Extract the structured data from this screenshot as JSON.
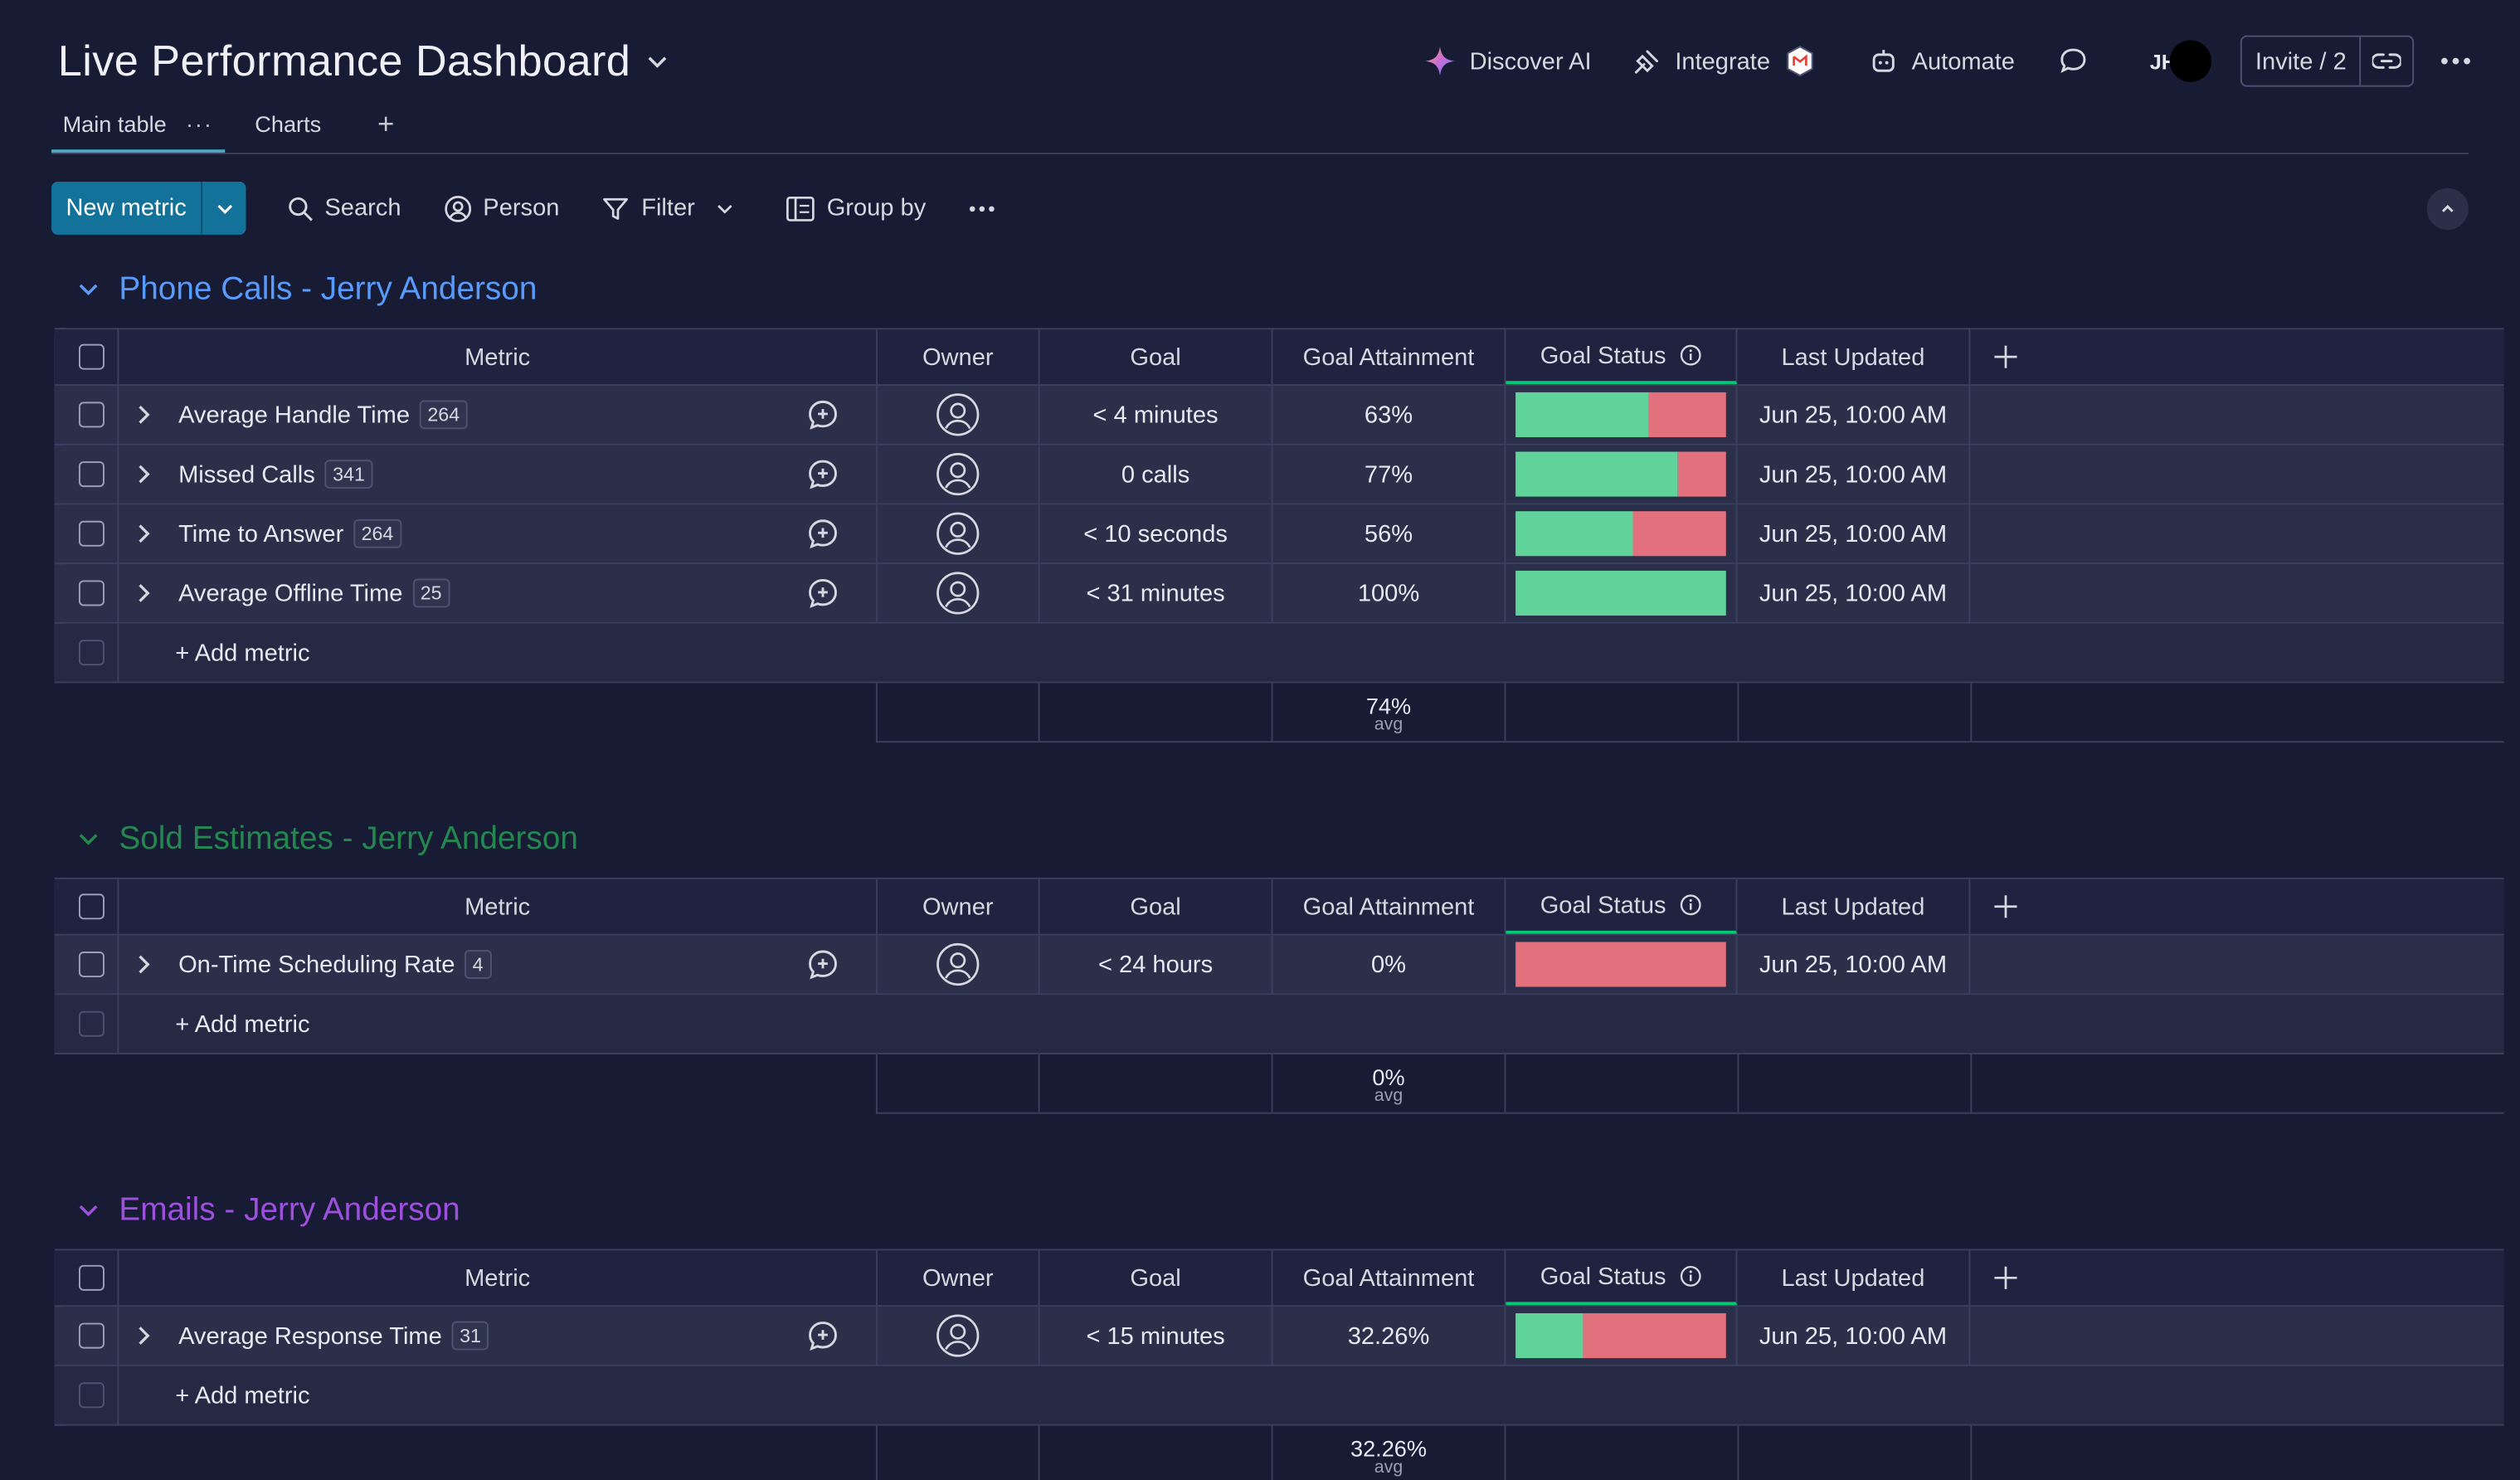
{
  "header": {
    "title": "Live Performance Dashboard",
    "discover_ai": "Discover AI",
    "integrate": "Integrate",
    "automate": "Automate",
    "avatar_initials": "JH",
    "invite": "Invite / 2"
  },
  "tabs": {
    "main_table": "Main table",
    "charts": "Charts",
    "add": "+"
  },
  "toolbar": {
    "new_metric": "New metric",
    "search": "Search",
    "person": "Person",
    "filter": "Filter",
    "group_by": "Group by"
  },
  "columns": {
    "metric": "Metric",
    "owner": "Owner",
    "goal": "Goal",
    "goal_attainment": "Goal Attainment",
    "goal_status": "Goal Status",
    "last_updated": "Last Updated",
    "add_column": "+"
  },
  "add_metric_label": "+ Add metric",
  "summary_label": "avg",
  "colors": {
    "status_green": "#5fd39a",
    "status_red": "#e2717d",
    "group_blue": "#579bfc",
    "group_green": "#258750",
    "group_purple": "#9d50dd",
    "primary_button": "#13729a"
  },
  "groups": [
    {
      "title": "Phone Calls - Jerry Anderson",
      "color": "#579bfc",
      "avg": "74%",
      "rows": [
        {
          "metric": "Average Handle Time",
          "count": "264",
          "goal": "< 4 minutes",
          "attainment": "63%",
          "status_green_fraction": 0.63,
          "updated": "Jun 25, 10:00 AM"
        },
        {
          "metric": "Missed Calls",
          "count": "341",
          "goal": "0 calls",
          "attainment": "77%",
          "status_green_fraction": 0.77,
          "updated": "Jun 25, 10:00 AM"
        },
        {
          "metric": "Time to Answer",
          "count": "264",
          "goal": "< 10 seconds",
          "attainment": "56%",
          "status_green_fraction": 0.56,
          "updated": "Jun 25, 10:00 AM"
        },
        {
          "metric": "Average Offline Time",
          "count": "25",
          "goal": "< 31 minutes",
          "attainment": "100%",
          "status_green_fraction": 1.0,
          "updated": "Jun 25, 10:00 AM"
        }
      ]
    },
    {
      "title": "Sold Estimates - Jerry Anderson",
      "color": "#258750",
      "avg": "0%",
      "rows": [
        {
          "metric": "On-Time Scheduling Rate",
          "count": "4",
          "goal": "< 24 hours",
          "attainment": "0%",
          "status_green_fraction": 0.0,
          "updated": "Jun 25, 10:00 AM"
        }
      ]
    },
    {
      "title": "Emails - Jerry Anderson",
      "color": "#9d50dd",
      "avg": "32.26%",
      "rows": [
        {
          "metric": "Average Response Time",
          "count": "31",
          "goal": "< 15 minutes",
          "attainment": "32.26%",
          "status_green_fraction": 0.3226,
          "updated": "Jun 25, 10:00 AM"
        }
      ]
    }
  ]
}
